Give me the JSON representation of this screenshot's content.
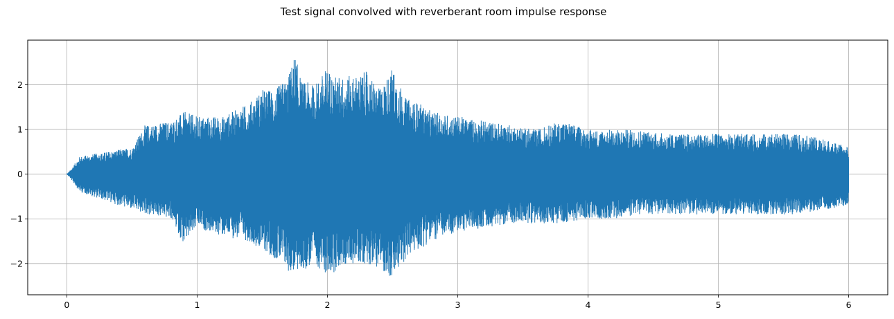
{
  "chart_data": {
    "type": "line",
    "title": "Test signal convolved with reverberant room impulse response",
    "xlabel": "",
    "ylabel": "",
    "xlim": [
      -0.3,
      6.3
    ],
    "ylim": [
      -2.7,
      3.0
    ],
    "xticks": [
      0,
      1,
      2,
      3,
      4,
      5,
      6
    ],
    "xtick_labels": [
      "0",
      "1",
      "2",
      "3",
      "4",
      "5",
      "6"
    ],
    "yticks": [
      -2,
      -1,
      0,
      1,
      2
    ],
    "ytick_labels": [
      "−2",
      "−1",
      "0",
      "1",
      "2"
    ],
    "grid": true,
    "color": "#1f77b4",
    "series": [
      {
        "x": [
          0.0,
          0.03,
          0.1,
          0.3,
          0.5,
          0.6,
          0.8,
          0.9,
          1.0,
          1.2,
          1.4,
          1.5,
          1.6,
          1.7,
          1.75,
          1.8,
          1.9,
          2.0,
          2.05,
          2.1,
          2.2,
          2.3,
          2.4,
          2.5,
          2.6,
          2.7,
          2.8,
          3.0,
          3.2,
          3.4,
          3.6,
          3.8,
          4.0,
          4.2,
          4.4,
          4.6,
          4.8,
          5.0,
          5.2,
          5.4,
          5.6,
          5.8,
          6.0
        ],
        "upper": [
          0.0,
          0.1,
          0.4,
          0.5,
          0.6,
          1.1,
          1.2,
          1.4,
          1.3,
          1.3,
          1.6,
          1.9,
          1.9,
          2.2,
          2.7,
          2.1,
          2.0,
          2.4,
          2.2,
          2.2,
          2.2,
          2.3,
          1.9,
          2.4,
          1.7,
          1.6,
          1.4,
          1.3,
          1.2,
          1.1,
          1.0,
          1.2,
          1.0,
          1.0,
          1.0,
          0.9,
          0.9,
          0.9,
          0.9,
          0.9,
          0.9,
          0.8,
          0.6
        ],
        "lower": [
          0.0,
          -0.1,
          -0.4,
          -0.6,
          -0.8,
          -0.9,
          -1.0,
          -1.6,
          -1.2,
          -1.4,
          -1.5,
          -1.7,
          -1.9,
          -2.2,
          -2.2,
          -2.2,
          -2.0,
          -2.3,
          -2.2,
          -2.1,
          -2.0,
          -2.0,
          -2.1,
          -2.4,
          -1.9,
          -1.7,
          -1.5,
          -1.3,
          -1.2,
          -1.1,
          -1.1,
          -1.1,
          -1.0,
          -1.0,
          -0.9,
          -0.9,
          -0.9,
          -0.9,
          -0.9,
          -0.9,
          -0.9,
          -0.8,
          -0.7
        ]
      }
    ]
  }
}
